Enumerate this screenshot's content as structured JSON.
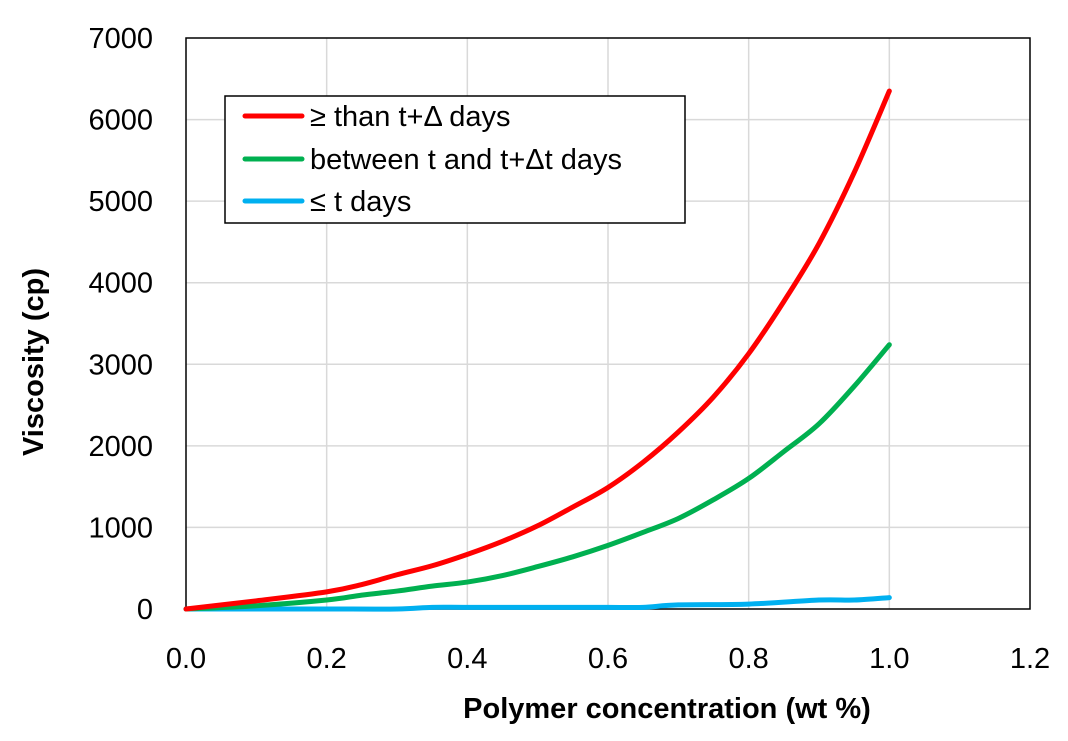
{
  "chart_data": {
    "type": "line",
    "title": "",
    "xlabel": "Polymer concentration (wt %)",
    "ylabel": "Viscosity (cp)",
    "xlim": [
      0,
      1.2
    ],
    "ylim": [
      0,
      7000
    ],
    "x_ticks": [
      "0.0",
      "0.2",
      "0.4",
      "0.6",
      "0.8",
      "1.0",
      "1.2"
    ],
    "y_ticks": [
      "0",
      "1000",
      "2000",
      "3000",
      "4000",
      "5000",
      "6000",
      "7000"
    ],
    "grid": true,
    "legend_position": "top-left",
    "series": [
      {
        "name": "≥ than t+Δ days",
        "color": "#ff0000",
        "points": [
          [
            0,
            0
          ],
          [
            0.1,
            100
          ],
          [
            0.2,
            210
          ],
          [
            0.25,
            300
          ],
          [
            0.3,
            420
          ],
          [
            0.35,
            530
          ],
          [
            0.4,
            670
          ],
          [
            0.45,
            830
          ],
          [
            0.5,
            1020
          ],
          [
            0.55,
            1250
          ],
          [
            0.6,
            1490
          ],
          [
            0.65,
            1800
          ],
          [
            0.7,
            2170
          ],
          [
            0.75,
            2600
          ],
          [
            0.8,
            3130
          ],
          [
            0.85,
            3770
          ],
          [
            0.9,
            4480
          ],
          [
            0.95,
            5350
          ],
          [
            1.0,
            6350
          ]
        ]
      },
      {
        "name": "between t and t+Δt days",
        "color": "#00b050",
        "points": [
          [
            0,
            0
          ],
          [
            0.1,
            40
          ],
          [
            0.2,
            110
          ],
          [
            0.25,
            170
          ],
          [
            0.3,
            220
          ],
          [
            0.35,
            280
          ],
          [
            0.4,
            330
          ],
          [
            0.45,
            410
          ],
          [
            0.5,
            520
          ],
          [
            0.55,
            640
          ],
          [
            0.6,
            780
          ],
          [
            0.65,
            940
          ],
          [
            0.7,
            1110
          ],
          [
            0.75,
            1340
          ],
          [
            0.8,
            1600
          ],
          [
            0.85,
            1930
          ],
          [
            0.9,
            2270
          ],
          [
            0.95,
            2730
          ],
          [
            1.0,
            3240
          ]
        ]
      },
      {
        "name": "≤ t days",
        "color": "#00b0f0",
        "points": [
          [
            0,
            0
          ],
          [
            0.1,
            0
          ],
          [
            0.2,
            0
          ],
          [
            0.3,
            0
          ],
          [
            0.35,
            20
          ],
          [
            0.4,
            20
          ],
          [
            0.5,
            20
          ],
          [
            0.6,
            20
          ],
          [
            0.65,
            20
          ],
          [
            0.7,
            50
          ],
          [
            0.8,
            60
          ],
          [
            0.9,
            110
          ],
          [
            0.95,
            110
          ],
          [
            1.0,
            140
          ]
        ]
      }
    ]
  }
}
